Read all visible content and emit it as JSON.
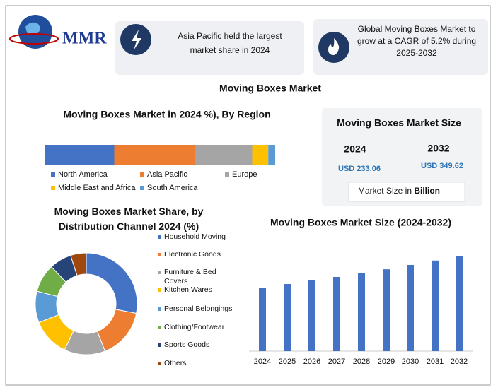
{
  "header": {
    "logo": "MMR",
    "cards": [
      {
        "text": "Asia Pacific held the largest market share in 2024"
      },
      {
        "text": "Global Moving Boxes Market to grow at a CAGR of 5.2% during 2025-2032"
      }
    ]
  },
  "title": "Moving Boxes Market",
  "size_card": {
    "title": "Moving Boxes Market Size",
    "years": [
      "2024",
      "2032"
    ],
    "amounts": [
      "USD 233.06",
      "USD 349.62"
    ],
    "note": "Market Size in",
    "note_bold": "Billion"
  },
  "chart_data": [
    {
      "type": "stacked_bar",
      "title": "Moving Boxes Market in 2024 %), By Region",
      "series": [
        {
          "name": "North America",
          "color": "#4472c4",
          "values": [
            30
          ]
        },
        {
          "name": "Asia Pacific",
          "color": "#ed7d31",
          "values": [
            35
          ]
        },
        {
          "name": "Europe",
          "color": "#a5a5a5",
          "values": [
            25
          ]
        },
        {
          "name": "Middle East and Africa",
          "color": "#ffc000",
          "values": [
            7
          ]
        },
        {
          "name": "South America",
          "color": "#5b9bd5",
          "values": [
            3
          ]
        }
      ]
    },
    {
      "type": "donut",
      "title": "Moving Boxes Market Share, by Distribution Channel 2024 (%)",
      "categories": [
        "Household Moving",
        "Electronic Goods",
        "Furniture & Bed Covers",
        "Kitchen Wares",
        "Personal Belongings",
        "Clothing/Footwear",
        "Sports Goods",
        "Others"
      ],
      "values": [
        28,
        16,
        13,
        12,
        10,
        9,
        7,
        5
      ],
      "colors": [
        "#4472c4",
        "#ed7d31",
        "#a5a5a5",
        "#ffc000",
        "#5b9bd5",
        "#70ad47",
        "#264478",
        "#9e480e"
      ]
    },
    {
      "type": "bar",
      "title": "Moving Boxes Market Size (2024-2032)",
      "categories": [
        "2024",
        "2025",
        "2026",
        "2027",
        "2028",
        "2029",
        "2030",
        "2031",
        "2032"
      ],
      "values": [
        233.06,
        246,
        259,
        272,
        285,
        300,
        316,
        332,
        349.62
      ],
      "color": "#4472c4"
    }
  ]
}
